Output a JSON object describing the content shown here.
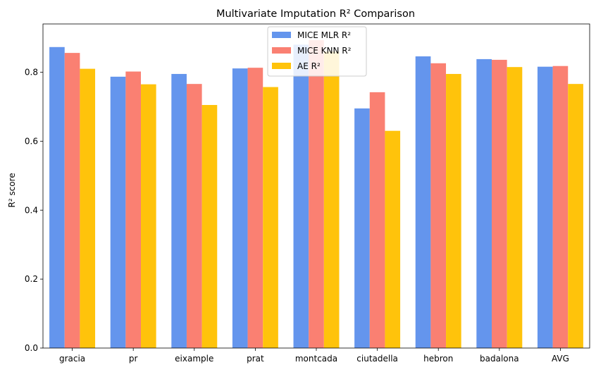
{
  "chart_data": {
    "type": "bar",
    "title": "Multivariate Imputation R² Comparison",
    "xlabel": "",
    "ylabel": "R² score",
    "categories": [
      "gracia",
      "pr",
      "eixample",
      "prat",
      "montcada",
      "ciutadella",
      "hebron",
      "badalona",
      "AVG"
    ],
    "series": [
      {
        "name": "MICE MLR R²",
        "color": "#6495ED",
        "values": [
          0.873,
          0.787,
          0.795,
          0.811,
          0.88,
          0.695,
          0.846,
          0.838,
          0.816
        ]
      },
      {
        "name": "MICE KNN R²",
        "color": "#FA8072",
        "values": [
          0.856,
          0.802,
          0.766,
          0.813,
          0.893,
          0.742,
          0.826,
          0.836,
          0.818
        ]
      },
      {
        "name": "AE R²",
        "color": "#FFC30B",
        "values": [
          0.81,
          0.765,
          0.705,
          0.757,
          0.86,
          0.63,
          0.795,
          0.815,
          0.766
        ]
      }
    ],
    "ylim": [
      0,
      0.94
    ],
    "yticks": [
      "0.0",
      "0.2",
      "0.4",
      "0.6",
      "0.8"
    ],
    "grid": false,
    "legend": "top-center"
  }
}
